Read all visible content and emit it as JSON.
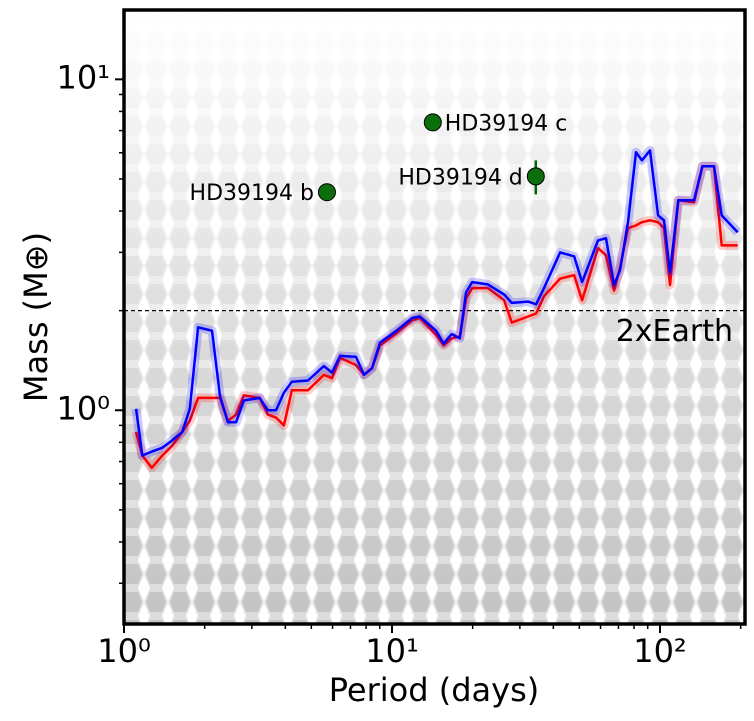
{
  "chart_data": {
    "type": "line",
    "xlabel": "Period (days)",
    "ylabel": "Mass (M⊕)",
    "xscale": "log",
    "yscale": "log",
    "xlim": [
      1,
      207.6
    ],
    "ylim": [
      0.226,
      16.2
    ],
    "xticks": [
      {
        "value": 1,
        "label": "10⁰"
      },
      {
        "value": 10,
        "label": "10¹"
      },
      {
        "value": 100,
        "label": "10²"
      }
    ],
    "yticks": [
      {
        "value": 1,
        "label": "10⁰"
      },
      {
        "value": 10,
        "label": "10¹"
      }
    ],
    "x": [
      1.11,
      1.17,
      1.27,
      1.39,
      1.51,
      1.65,
      1.76,
      1.89,
      2.13,
      2.28,
      2.44,
      2.62,
      2.8,
      3.21,
      3.44,
      3.69,
      3.95,
      4.23,
      4.86,
      5.57,
      5.97,
      6.4,
      7.34,
      7.86,
      8.42,
      9.02,
      10.4,
      11.9,
      12.7,
      14.6,
      15.6,
      16.7,
      17.9,
      18.9,
      19.9,
      22.8,
      26.2,
      28.0,
      32.2,
      34.5,
      36.9,
      42.4,
      47.8,
      51.2,
      58.7,
      62.9,
      67.4,
      70.9,
      76.0,
      81.4,
      85.7,
      91.8,
      98.4,
      103.5,
      109,
      117,
      134,
      144,
      159,
      170,
      195
    ],
    "series": [
      {
        "color": "#ff0000",
        "values": [
          0.86,
          0.73,
          0.67,
          0.73,
          0.78,
          0.86,
          0.93,
          1.09,
          1.09,
          1.09,
          0.93,
          0.97,
          1.11,
          1.09,
          0.97,
          0.95,
          0.9,
          1.15,
          1.15,
          1.28,
          1.25,
          1.44,
          1.37,
          1.28,
          1.34,
          1.57,
          1.71,
          1.87,
          1.9,
          1.69,
          1.57,
          1.65,
          1.67,
          2.18,
          2.34,
          2.34,
          2.15,
          1.84,
          1.92,
          1.96,
          2.21,
          2.5,
          2.56,
          2.15,
          3.09,
          2.94,
          2.3,
          2.69,
          3.55,
          3.62,
          3.7,
          3.75,
          3.7,
          3.55,
          2.39,
          4.31,
          4.25,
          5.46,
          5.46,
          3.15,
          3.15
        ]
      },
      {
        "color": "#0000ff",
        "values": [
          1.01,
          0.73,
          0.75,
          0.77,
          0.81,
          0.86,
          1.01,
          1.78,
          1.74,
          1.11,
          0.92,
          0.92,
          1.07,
          1.09,
          1.0,
          1.0,
          1.13,
          1.22,
          1.23,
          1.36,
          1.3,
          1.46,
          1.45,
          1.28,
          1.34,
          1.6,
          1.74,
          1.9,
          1.92,
          1.74,
          1.59,
          1.7,
          1.65,
          2.27,
          2.44,
          2.4,
          2.24,
          2.11,
          2.13,
          2.09,
          2.34,
          3.0,
          2.92,
          2.44,
          3.26,
          3.31,
          2.39,
          2.65,
          3.7,
          6.02,
          5.69,
          6.1,
          3.88,
          3.75,
          2.61,
          4.31,
          4.31,
          5.46,
          5.46,
          3.88,
          3.45
        ]
      }
    ],
    "points": {
      "color": "#006400",
      "names": [
        "HD39194 b",
        "HD39194 c",
        "HD39194 d"
      ],
      "x": [
        5.72,
        14.2,
        34.4
      ],
      "y": [
        4.56,
        7.41,
        5.09
      ],
      "err": [
        0.25,
        0.4,
        0.6
      ]
    },
    "hline": {
      "value": 2,
      "label": "2xEarth"
    }
  }
}
